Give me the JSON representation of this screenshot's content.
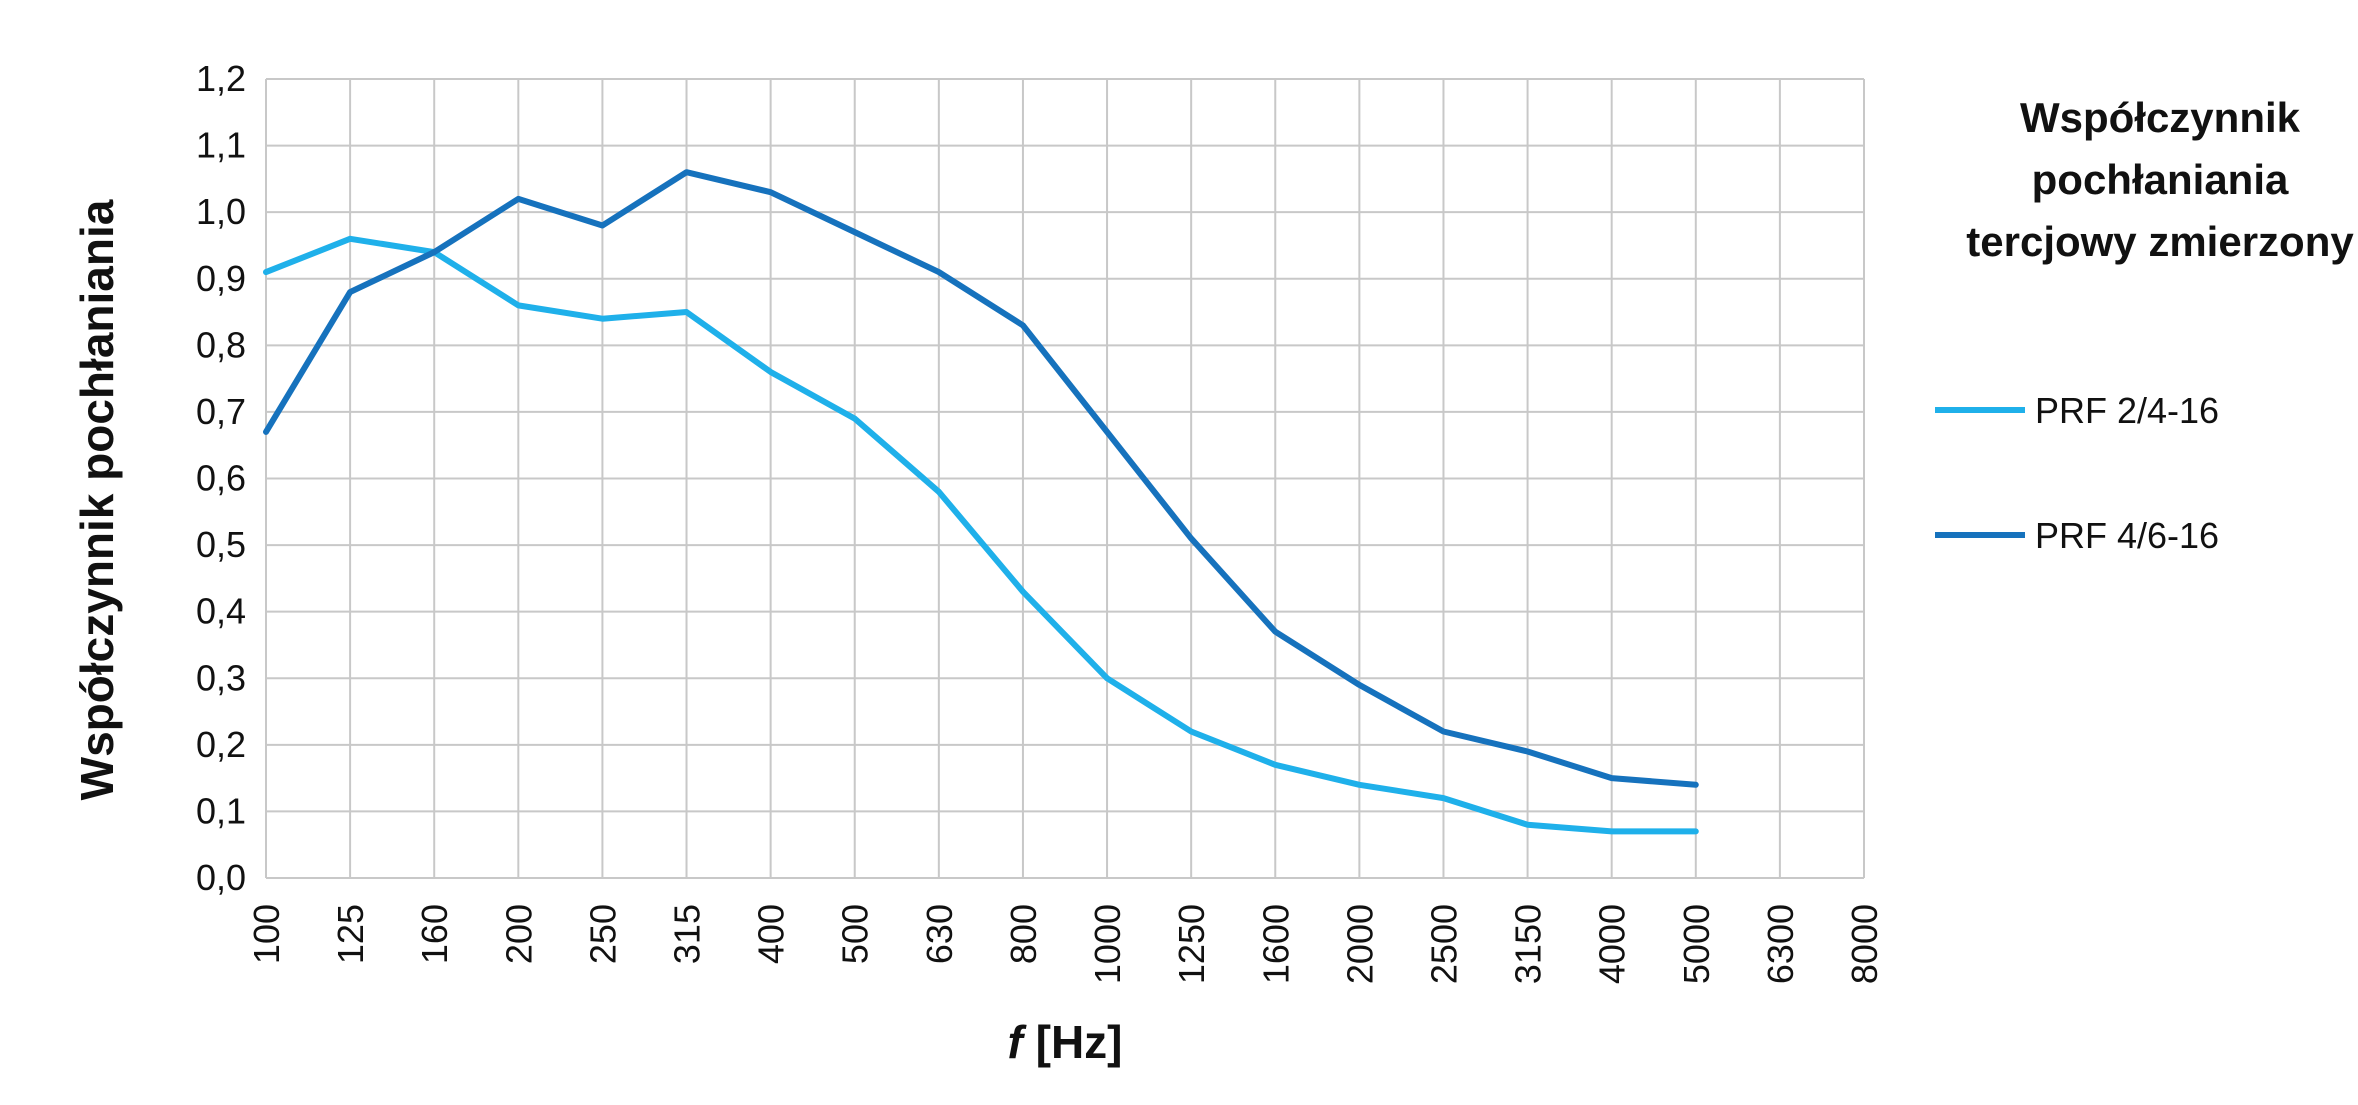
{
  "chart_data": {
    "type": "line",
    "title": "",
    "xlabel_italic": "f",
    "xlabel_rest": " [Hz]",
    "ylabel": "Współczynnik pochłaniania",
    "x_categories": [
      "100",
      "125",
      "160",
      "200",
      "250",
      "315",
      "400",
      "500",
      "630",
      "800",
      "1000",
      "1250",
      "1600",
      "2000",
      "2500",
      "3150",
      "4000",
      "5000",
      "6300",
      "8000"
    ],
    "y_ticks": [
      "0,0",
      "0,1",
      "0,2",
      "0,3",
      "0,4",
      "0,5",
      "0,6",
      "0,7",
      "0,8",
      "0,9",
      "1,0",
      "1,1",
      "1,2"
    ],
    "ylim": [
      0,
      1.2
    ],
    "grid": true,
    "legend": {
      "placement": "right",
      "title_lines": [
        "Współczynnik",
        "pochłaniania",
        "tercjowy zmierzony"
      ]
    },
    "series": [
      {
        "name": "PRF 2/4-16",
        "color": "#1fb0ea",
        "values": [
          0.91,
          0.96,
          0.94,
          0.86,
          0.84,
          0.85,
          0.76,
          0.69,
          0.58,
          0.43,
          0.3,
          0.22,
          0.17,
          0.14,
          0.12,
          0.08,
          0.07,
          0.07
        ]
      },
      {
        "name": "PRF 4/6-16",
        "color": "#1672bd",
        "values": [
          0.67,
          0.88,
          0.94,
          1.02,
          0.98,
          1.06,
          1.03,
          0.97,
          0.91,
          0.83,
          0.67,
          0.51,
          0.37,
          0.29,
          0.22,
          0.19,
          0.15,
          0.14
        ]
      }
    ]
  }
}
